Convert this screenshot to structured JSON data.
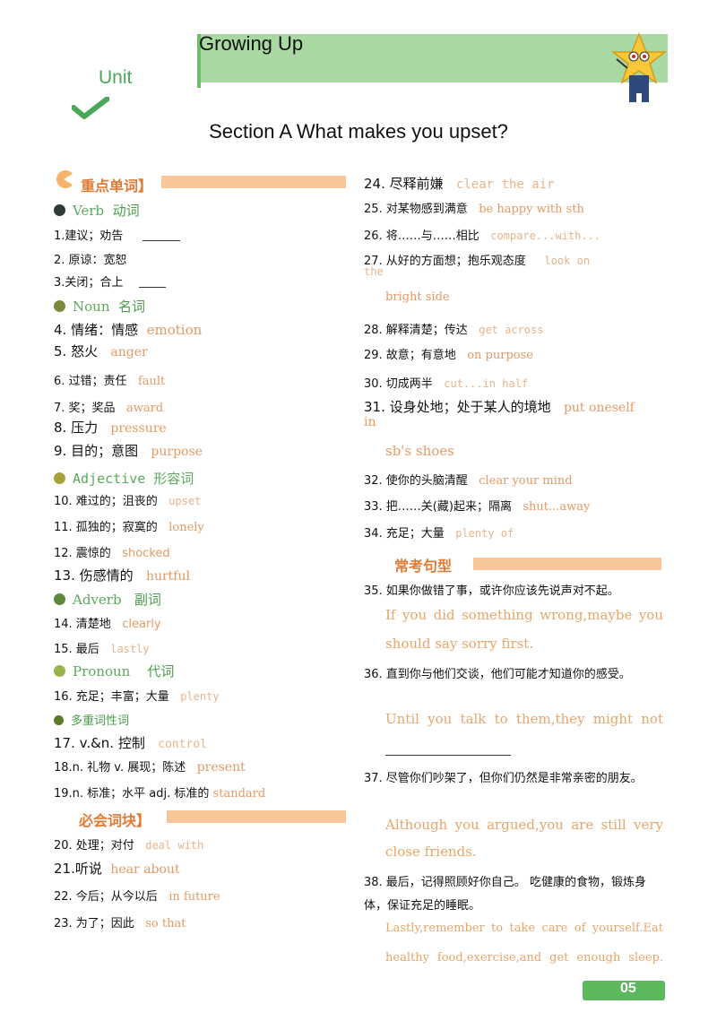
{
  "header": {
    "banner_title": "Growing  Up",
    "unit_label": "Unit",
    "section_title": "Section A What  makes  you  upset?"
  },
  "left": {
    "vocab_heading": "重点单词】",
    "verb": {
      "label_en": "Verb",
      "label_cn": "动词",
      "items": [
        "1.建议；劝告",
        "2.  原谅：宽恕",
        "3.关闭；合上"
      ]
    },
    "noun": {
      "label_en": "Noun",
      "label_cn": "名词",
      "items": [
        {
          "cn": "4. 情绪：情感",
          "en": "emotion"
        },
        {
          "cn": "5. 怒火",
          "en": "anger"
        },
        {
          "cn": "6. 过错；责任",
          "en": "fault"
        },
        {
          "cn": "7. 奖；奖品",
          "en": "award"
        },
        {
          "cn": "8. 压力",
          "en": "pressure"
        },
        {
          "cn": "9. 目的；意图",
          "en": "purpose"
        }
      ]
    },
    "adjective": {
      "label": "Adjective 形容词",
      "items": [
        {
          "cn": "10. 难过的；沮丧的",
          "en": "upset"
        },
        {
          "cn": "11. 孤独的；寂寞的",
          "en": "lonely"
        },
        {
          "cn": "12. 震惊的",
          "en": "shocked"
        },
        {
          "cn": "13. 伤感情的",
          "en": "hurtful"
        }
      ]
    },
    "adverb": {
      "label_en": "Adverb",
      "label_cn": "副词",
      "items": [
        {
          "cn": "14. 清楚地",
          "en": "clearly"
        },
        {
          "cn": "15. 最后",
          "en": "lastly"
        }
      ]
    },
    "pronoun": {
      "label_en": "Pronoun",
      "label_cn": "代词",
      "items": [
        {
          "cn": "16. 充足；丰富；大量",
          "en": "plenty"
        }
      ]
    },
    "multi": {
      "label": "多重词性词",
      "items": [
        {
          "cn": "17. v.&n. 控制",
          "en": "control"
        },
        {
          "cn": "18.n. 礼物   v. 展现；陈述",
          "en": "present"
        },
        {
          "cn": "19.n. 标准；水平     adj. 标准的",
          "en": "standard"
        }
      ]
    },
    "phrase_heading": "必会词块】",
    "phrases": [
      {
        "cn": "20. 处理；对付",
        "en": "deal  with"
      },
      {
        "cn": "21.听说",
        "en": "hear about"
      },
      {
        "cn": "22. 今后；从今以后",
        "en": "in   future"
      },
      {
        "cn": "23.  为了；因此",
        "en": "so   that"
      }
    ]
  },
  "right": {
    "phrases": [
      {
        "cn": "24. 尽释前嫌",
        "en": "clear the air"
      },
      {
        "cn": "25. 对某物感到满意",
        "en": "be  happy  with  sth"
      },
      {
        "cn": "26. 将……与……相比",
        "en": "compare...with..."
      },
      {
        "cn": "27.  从好的方面想；抱乐观态度",
        "en": "look  on",
        "tail": "the",
        "cont": "bright  side"
      },
      {
        "cn": "28. 解释清楚；传达",
        "en": "get across"
      },
      {
        "cn": "29. 故意；有意地",
        "en": "on   purpose"
      },
      {
        "cn": "30. 切成两半",
        "en": "cut...in half"
      },
      {
        "cn": "31. 设身处地；处于某人的境地",
        "en": "put oneself",
        "tail": "in",
        "cont": "sb's shoes"
      },
      {
        "cn": "32. 使你的头脑清醒",
        "en": "clear   your   mind"
      },
      {
        "cn": "33. 把……关(藏)起来；隔离",
        "en": "shut...away"
      },
      {
        "cn": "34. 充足；大量",
        "en": "plenty of"
      }
    ],
    "sentence_heading": "常考句型",
    "sentences": [
      {
        "cn": "35. 如果你做错了事，或许你应该先说声对不起。",
        "en": [
          "If you did something wrong,maybe you",
          "should say sorry first."
        ]
      },
      {
        "cn": "36. 直到你与他们交谈，他们可能才知道你的感受。",
        "en": [
          "Until  you  talk  to  them,they  might  not"
        ]
      },
      {
        "cn": "37. 尽管你们吵架了，但你们仍然是非常亲密的朋友。",
        "en": [
          "Although  you  argued,you  are  still  very",
          "close friends."
        ]
      },
      {
        "cn": "38. 最后，记得照顾好你自己。 吃健康的食物，锻炼身体，保证充足的睡眠。",
        "en": [
          "Lastly,remember  to  take  care  of  yourself.Eat",
          "healthy  food,exercise,and  get  enough  sleep."
        ]
      }
    ]
  },
  "footer": {
    "page_number": "05"
  }
}
